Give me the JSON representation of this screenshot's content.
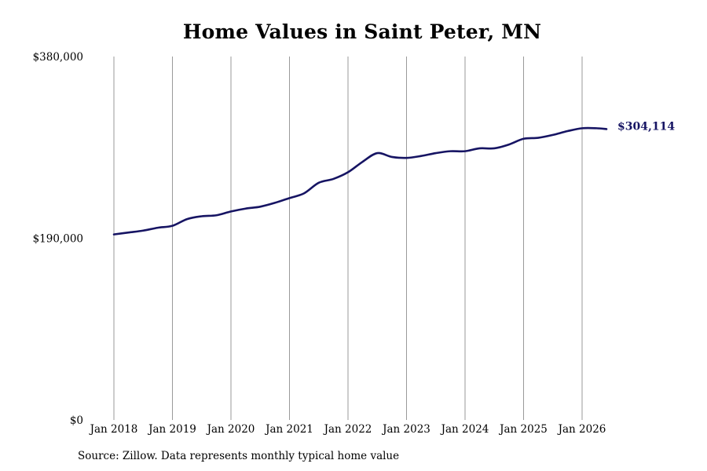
{
  "chart_data": {
    "type": "line",
    "title": "Home Values in Saint Peter, MN",
    "source": "Source: Zillow. Data represents monthly typical home value",
    "xlabel": "",
    "ylabel": "",
    "x_ticks": [
      "Jan 2018",
      "Jan 2019",
      "Jan 2020",
      "Jan 2021",
      "Jan 2022",
      "Jan 2023",
      "Jan 2024",
      "Jan 2025",
      "Jan 2026"
    ],
    "y_ticks": [
      {
        "value": 0,
        "label": "$0"
      },
      {
        "value": 190000,
        "label": "$190,000"
      },
      {
        "value": 380000,
        "label": "$380,000"
      }
    ],
    "ylim": [
      0,
      380000
    ],
    "xlim": [
      "2018-01",
      "2026-06"
    ],
    "grid": "vertical",
    "line_color": "#161463",
    "end_label": "$304,114",
    "series": [
      {
        "points": [
          [
            "2018-01",
            194000
          ],
          [
            "2018-04",
            196000
          ],
          [
            "2018-07",
            198000
          ],
          [
            "2018-10",
            201000
          ],
          [
            "2019-01",
            203000
          ],
          [
            "2019-04",
            210000
          ],
          [
            "2019-07",
            213000
          ],
          [
            "2019-10",
            214000
          ],
          [
            "2020-01",
            218000
          ],
          [
            "2020-04",
            221000
          ],
          [
            "2020-07",
            223000
          ],
          [
            "2020-10",
            227000
          ],
          [
            "2021-01",
            232000
          ],
          [
            "2021-04",
            237000
          ],
          [
            "2021-07",
            248000
          ],
          [
            "2021-10",
            252000
          ],
          [
            "2022-01",
            259000
          ],
          [
            "2022-04",
            270000
          ],
          [
            "2022-07",
            279000
          ],
          [
            "2022-10",
            275000
          ],
          [
            "2023-01",
            274000
          ],
          [
            "2023-04",
            276000
          ],
          [
            "2023-07",
            279000
          ],
          [
            "2023-10",
            281000
          ],
          [
            "2024-01",
            281000
          ],
          [
            "2024-04",
            284000
          ],
          [
            "2024-07",
            284000
          ],
          [
            "2024-10",
            288000
          ],
          [
            "2025-01",
            294000
          ],
          [
            "2025-04",
            295000
          ],
          [
            "2025-07",
            298000
          ],
          [
            "2025-10",
            302000
          ],
          [
            "2026-01",
            305000
          ],
          [
            "2026-04",
            305000
          ],
          [
            "2026-06",
            304114
          ]
        ]
      }
    ]
  }
}
